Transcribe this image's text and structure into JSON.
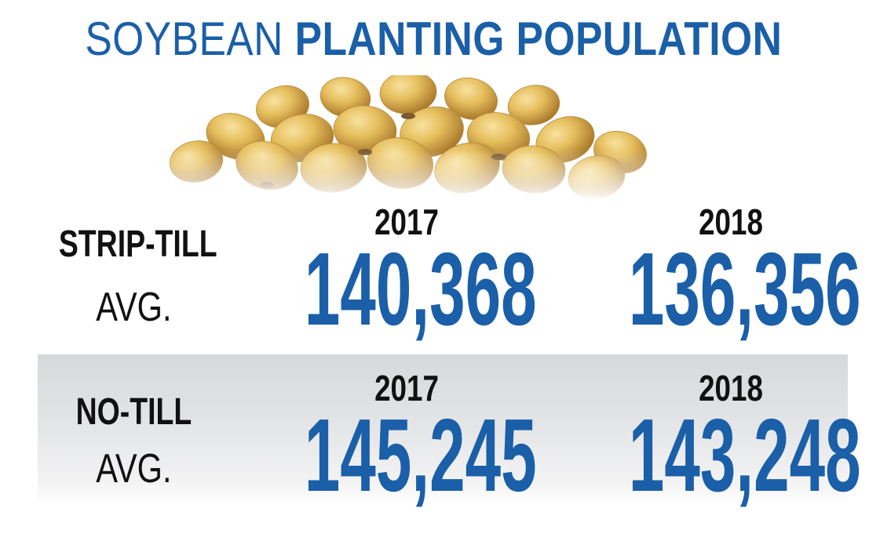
{
  "title": {
    "light": "SOYBEAN",
    "bold": "PLANTING POPULATION"
  },
  "colors": {
    "accent": "#1a5fa8",
    "label": "#111111",
    "row_band": "#e0e1e3",
    "bean": "#e0b95a"
  },
  "image": {
    "icon": "soybeans-image"
  },
  "rows": [
    {
      "label": "STRIP-TILL",
      "sub": "AVG.",
      "cols": [
        {
          "year": "2017",
          "value": "140,368"
        },
        {
          "year": "2018",
          "value": "136,356"
        }
      ]
    },
    {
      "label": "NO-TILL",
      "sub": "AVG.",
      "cols": [
        {
          "year": "2017",
          "value": "145,245"
        },
        {
          "year": "2018",
          "value": "143,248"
        }
      ]
    }
  ],
  "chart_data": {
    "type": "table",
    "title": "SOYBEAN PLANTING POPULATION",
    "columns": [
      "2017",
      "2018"
    ],
    "rows": [
      {
        "name": "STRIP-TILL AVG.",
        "values": [
          140368,
          136356
        ]
      },
      {
        "name": "NO-TILL AVG.",
        "values": [
          145245,
          143248
        ]
      }
    ]
  }
}
